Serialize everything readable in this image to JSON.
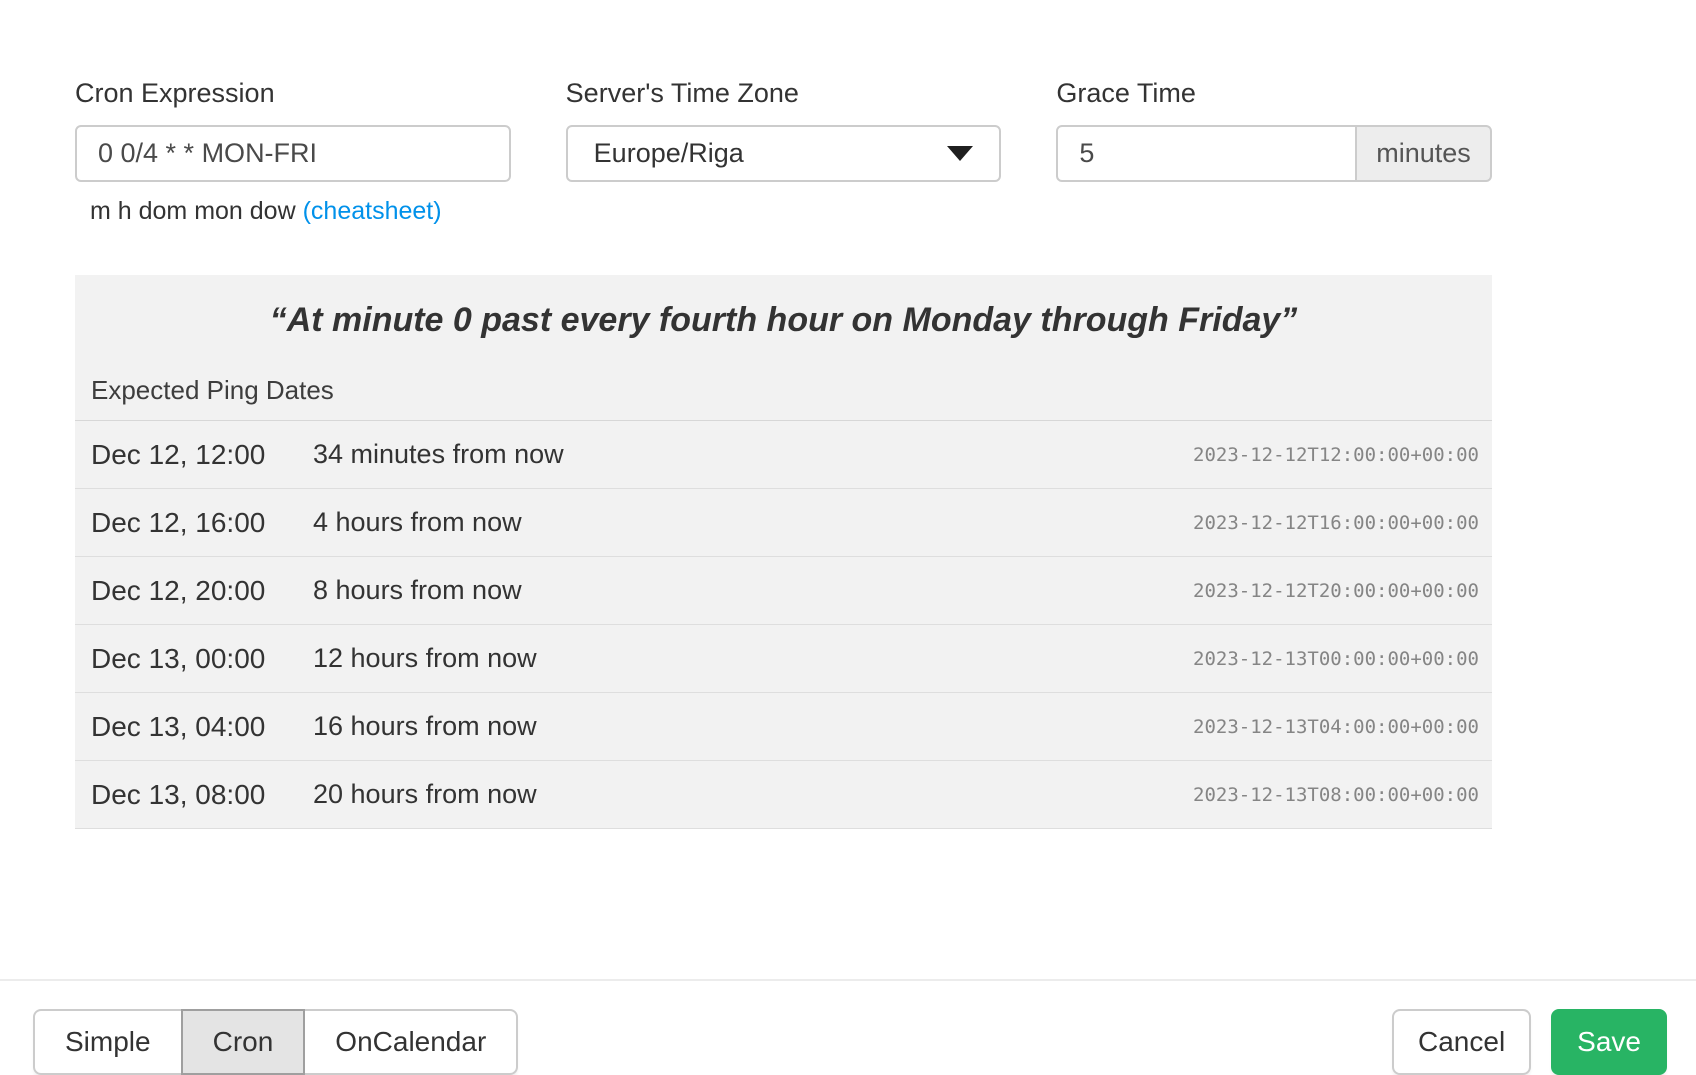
{
  "form": {
    "cron": {
      "label": "Cron Expression",
      "value": "0 0/4 * * MON-FRI",
      "helper_text": "m h dom mon dow",
      "helper_link": "(cheatsheet)"
    },
    "timezone": {
      "label": "Server's Time Zone",
      "selected": "Europe/Riga"
    },
    "grace": {
      "label": "Grace Time",
      "value": "5",
      "unit": "minutes"
    }
  },
  "preview": {
    "description": "“At minute 0 past every fourth hour on Monday through Friday”",
    "heading": "Expected Ping Dates",
    "rows": [
      {
        "date": "Dec 12, 12:00",
        "relative": "34 minutes from now",
        "iso": "2023-12-12T12:00:00+00:00"
      },
      {
        "date": "Dec 12, 16:00",
        "relative": "4 hours from now",
        "iso": "2023-12-12T16:00:00+00:00"
      },
      {
        "date": "Dec 12, 20:00",
        "relative": "8 hours from now",
        "iso": "2023-12-12T20:00:00+00:00"
      },
      {
        "date": "Dec 13, 00:00",
        "relative": "12 hours from now",
        "iso": "2023-12-13T00:00:00+00:00"
      },
      {
        "date": "Dec 13, 04:00",
        "relative": "16 hours from now",
        "iso": "2023-12-13T04:00:00+00:00"
      },
      {
        "date": "Dec 13, 08:00",
        "relative": "20 hours from now",
        "iso": "2023-12-13T08:00:00+00:00"
      }
    ]
  },
  "footer": {
    "modes": [
      {
        "label": "Simple",
        "active": false
      },
      {
        "label": "Cron",
        "active": true
      },
      {
        "label": "OnCalendar",
        "active": false
      }
    ],
    "cancel_label": "Cancel",
    "save_label": "Save"
  },
  "icons": {
    "timezone_caret": "caret-down"
  },
  "colors": {
    "save_green": "#28b464",
    "link_blue": "#0091ea",
    "panel_background": "#f2f2f2",
    "active_mode_background": "#e4e4e4"
  }
}
